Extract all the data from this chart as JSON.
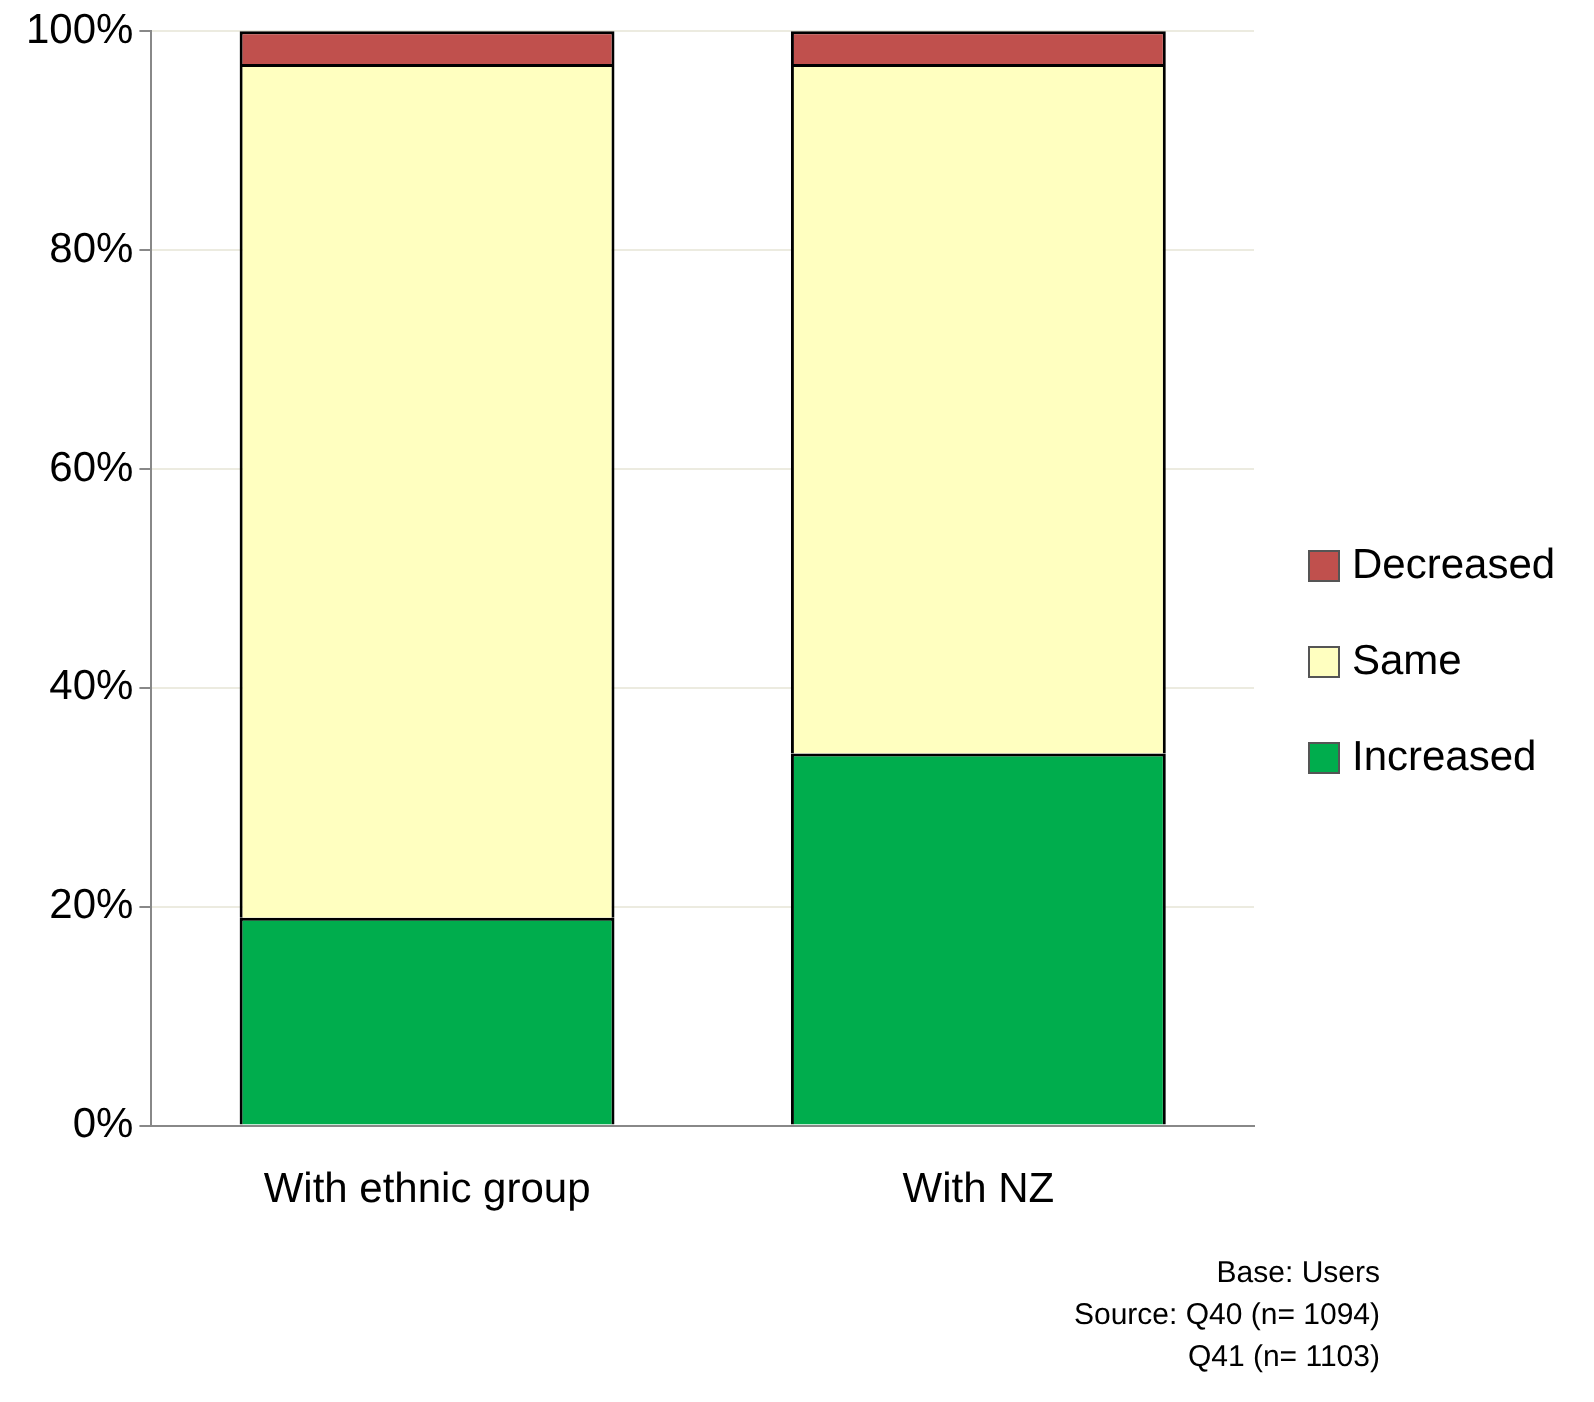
{
  "chart_data": {
    "type": "bar",
    "stacked": true,
    "categories": [
      "With ethnic group",
      "With NZ"
    ],
    "series": [
      {
        "name": "Increased",
        "color": "#00ad4d",
        "values": [
          19,
          34
        ]
      },
      {
        "name": "Same",
        "color": "#ffffc0",
        "values": [
          78,
          63
        ]
      },
      {
        "name": "Decreased",
        "color": "#c0504d",
        "values": [
          3,
          3
        ]
      }
    ],
    "ylim": [
      0,
      100
    ],
    "yticks": [
      {
        "value": 0,
        "label": "0%"
      },
      {
        "value": 20,
        "label": "20%"
      },
      {
        "value": 40,
        "label": "40%"
      },
      {
        "value": 60,
        "label": "60%"
      },
      {
        "value": 80,
        "label": "80%"
      },
      {
        "value": 100,
        "label": "100%"
      }
    ],
    "grid": "y",
    "legend": "right",
    "annotations": [
      "Base:  Users",
      "Source: Q40 (n= 1094)",
      "Q41 (n= 1103)"
    ]
  }
}
